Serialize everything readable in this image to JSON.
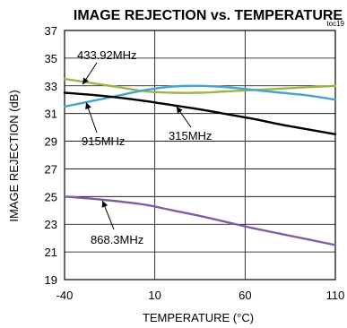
{
  "chart_data": {
    "type": "line",
    "title": "IMAGE REJECTION vs. TEMPERATURE",
    "figure_code": "toc19",
    "xlabel": "TEMPERATURE (°C)",
    "ylabel": "IMAGE REJECTION (dB)",
    "xlim": [
      -40,
      110
    ],
    "ylim": [
      19,
      37
    ],
    "xticks": [
      -40,
      10,
      60,
      110
    ],
    "yticks": [
      19,
      21,
      23,
      25,
      27,
      29,
      31,
      33,
      35,
      37
    ],
    "grid": true,
    "series": [
      {
        "name": "433.92MHz",
        "color": "#9DB44A",
        "x": [
          -40,
          -25,
          -10,
          5,
          20,
          35,
          50,
          65,
          80,
          95,
          110
        ],
        "y": [
          33.5,
          33.2,
          32.9,
          32.6,
          32.5,
          32.5,
          32.6,
          32.7,
          32.8,
          32.9,
          33.0
        ]
      },
      {
        "name": "915MHz",
        "color": "#3FA8C8",
        "x": [
          -40,
          -25,
          -10,
          5,
          20,
          35,
          50,
          65,
          80,
          95,
          110
        ],
        "y": [
          31.5,
          31.9,
          32.3,
          32.7,
          32.95,
          33.0,
          32.9,
          32.7,
          32.5,
          32.3,
          32.0
        ]
      },
      {
        "name": "315MHz",
        "color": "#000000",
        "x": [
          -40,
          -25,
          -10,
          5,
          20,
          35,
          50,
          65,
          80,
          95,
          110
        ],
        "y": [
          32.5,
          32.35,
          32.15,
          31.9,
          31.6,
          31.3,
          30.95,
          30.6,
          30.2,
          29.85,
          29.5
        ]
      },
      {
        "name": "868.3MHz",
        "color": "#7E5EA3",
        "x": [
          -40,
          -25,
          -10,
          5,
          20,
          35,
          50,
          65,
          80,
          95,
          110
        ],
        "y": [
          25.0,
          24.85,
          24.65,
          24.4,
          24.0,
          23.6,
          23.15,
          22.7,
          22.3,
          21.9,
          21.5
        ]
      }
    ],
    "annotations": [
      {
        "label": "433.92MHz",
        "x": -30,
        "y": 33.1
      },
      {
        "label": "915MHz",
        "x": -28,
        "y": 31.8
      },
      {
        "label": "315MHz",
        "x": 22,
        "y": 31.5
      },
      {
        "label": "868.3MHz",
        "x": -19,
        "y": 24.7
      }
    ]
  }
}
